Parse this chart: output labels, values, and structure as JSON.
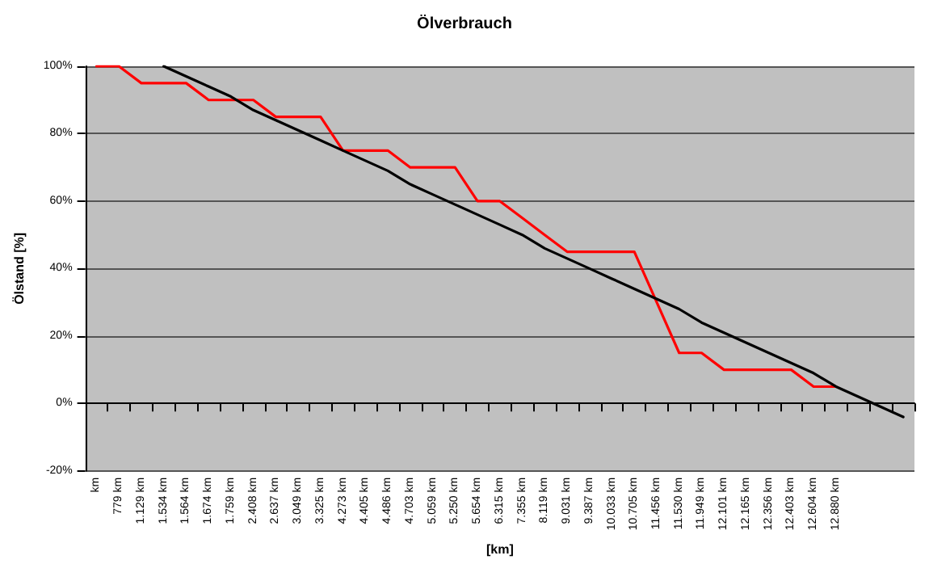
{
  "chart_data": {
    "type": "line",
    "title": "Ölverbrauch",
    "xlabel": "[km]",
    "ylabel": "Ölstand [%]",
    "categories": [
      "km",
      "779 km",
      "1.129 km",
      "1.534 km",
      "1.564 km",
      "1.674 km",
      "1.759 km",
      "2.408 km",
      "2.637 km",
      "3.049 km",
      "3.325 km",
      "4.273 km",
      "4.405 km",
      "4.486 km",
      "4.703 km",
      "5.059 km",
      "5.250 km",
      "5.654 km",
      "6.315 km",
      "7.355 km",
      "8.119 km",
      "9.031 km",
      "9.387 km",
      "10.033 km",
      "10.705 km",
      "11.456 km",
      "11.530 km",
      "11.949 km",
      "12.101 km",
      "12.165 km",
      "12.356 km",
      "12.403 km",
      "12.604 km",
      "12.880 km",
      null,
      null,
      null
    ],
    "series": [
      {
        "color": "#ff0000",
        "values": [
          100,
          100,
          95,
          95,
          95,
          90,
          90,
          90,
          85,
          85,
          85,
          75,
          75,
          75,
          70,
          70,
          70,
          60,
          60,
          55,
          50,
          45,
          45,
          45,
          45,
          30,
          15,
          15,
          10,
          10,
          10,
          10,
          5,
          5,
          null,
          null,
          null
        ]
      },
      {
        "color": "#000000",
        "values": [
          null,
          null,
          null,
          100,
          97,
          94,
          91,
          87,
          84,
          81,
          78,
          75,
          72,
          69,
          65,
          62,
          59,
          56,
          53,
          50,
          46,
          43,
          40,
          37,
          34,
          31,
          28,
          24,
          21,
          18,
          15,
          12,
          9,
          5,
          2,
          -1,
          -4
        ]
      }
    ],
    "ylim": [
      -20,
      100
    ],
    "yticks": [
      {
        "value": -20,
        "label": "-20%"
      },
      {
        "value": 0,
        "label": "0%"
      },
      {
        "value": 20,
        "label": "20%"
      },
      {
        "value": 40,
        "label": "40%"
      },
      {
        "value": 60,
        "label": "60%"
      },
      {
        "value": 80,
        "label": "80%"
      },
      {
        "value": 100,
        "label": "100%"
      }
    ],
    "grid": "y",
    "marker": "none",
    "line_style": "solid"
  }
}
